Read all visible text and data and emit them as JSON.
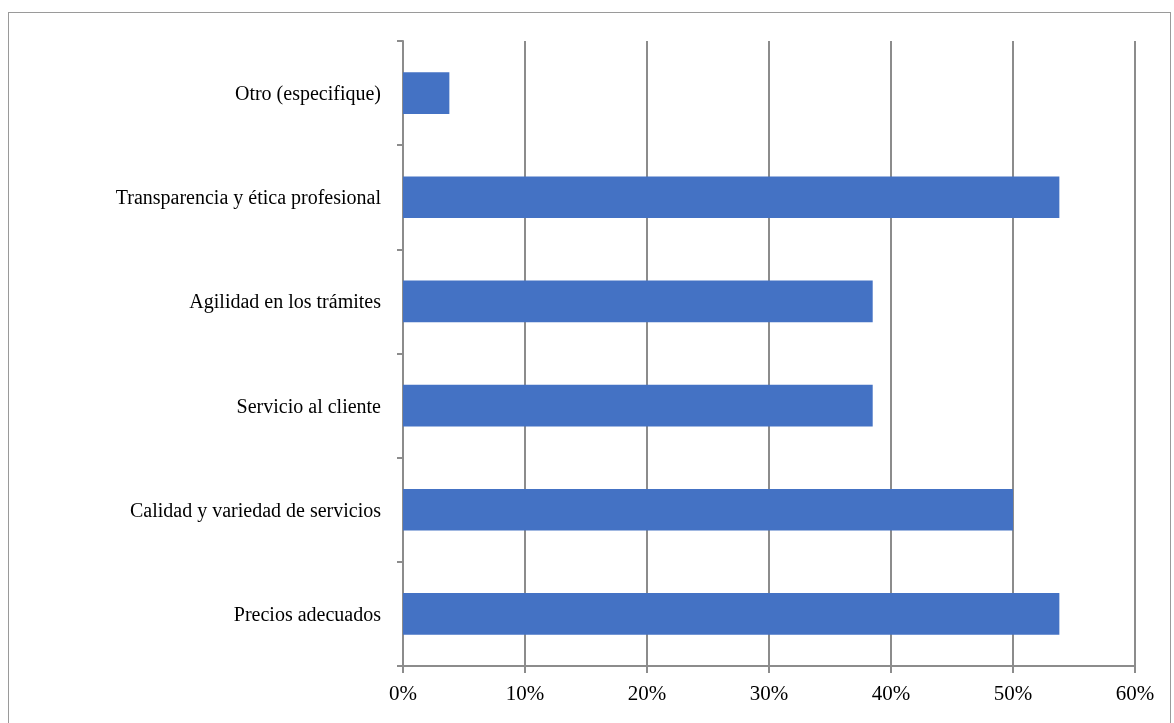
{
  "chart_data": {
    "type": "bar",
    "orientation": "horizontal",
    "categories": [
      "Otro (especifique)",
      "Transparencia y ética profesional",
      "Agilidad en los trámites",
      "Servicio al cliente",
      "Calidad y variedad de servicios",
      "Precios adecuados"
    ],
    "values": [
      3.8,
      53.8,
      38.5,
      38.5,
      50,
      53.8
    ],
    "color": "#4472c4",
    "xlim": [
      0,
      60
    ],
    "xticks": [
      {
        "value": 0,
        "label": "0%"
      },
      {
        "value": 10,
        "label": "10%"
      },
      {
        "value": 20,
        "label": "20%"
      },
      {
        "value": 30,
        "label": "30%"
      },
      {
        "value": 40,
        "label": "40%"
      },
      {
        "value": 50,
        "label": "50%"
      },
      {
        "value": 60,
        "label": "60%"
      }
    ],
    "grid": "x"
  }
}
